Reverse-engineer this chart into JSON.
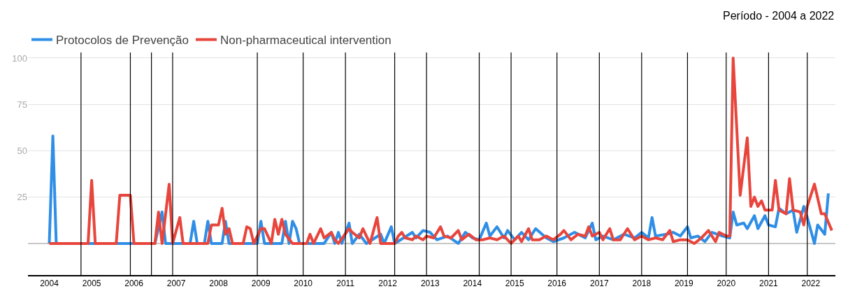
{
  "chart_data": {
    "type": "line",
    "annotations": [
      "Período - 2004 a 2022"
    ],
    "xlim": [
      "2003-07",
      "2022-08"
    ],
    "xticks": [
      "2004",
      "2005",
      "2006",
      "2007",
      "2008",
      "2009",
      "2010",
      "2011",
      "2012",
      "2013",
      "2014",
      "2015",
      "2016",
      "2017",
      "2018",
      "2019",
      "2020",
      "2021",
      "2022"
    ],
    "ylim": [
      -17,
      103
    ],
    "yticks": [
      25,
      50,
      75,
      100
    ],
    "grid": "y",
    "legend": "top left",
    "marker": "none",
    "line_style": "solid",
    "ref_lines": [
      {
        "axis": "x",
        "value": "2004-10",
        "label": null,
        "color": "#000000"
      },
      {
        "axis": "x",
        "value": "2005-12",
        "label": null,
        "color": "#000000"
      },
      {
        "axis": "x",
        "value": "2006-06",
        "label": null,
        "color": "#000000"
      },
      {
        "axis": "x",
        "value": "2006-12",
        "label": null,
        "color": "#000000"
      },
      {
        "axis": "x",
        "value": "2008-12",
        "label": null,
        "color": "#000000"
      },
      {
        "axis": "x",
        "value": "2010-01",
        "label": null,
        "color": "#000000"
      },
      {
        "axis": "x",
        "value": "2011-01",
        "label": null,
        "color": "#000000"
      },
      {
        "axis": "x",
        "value": "2012-03",
        "label": null,
        "color": "#000000"
      },
      {
        "axis": "x",
        "value": "2012-12",
        "label": null,
        "color": "#000000"
      },
      {
        "axis": "x",
        "value": "2014-03",
        "label": null,
        "color": "#000000"
      },
      {
        "axis": "x",
        "value": "2014-12",
        "label": null,
        "color": "#000000"
      },
      {
        "axis": "x",
        "value": "2016-01",
        "label": null,
        "color": "#000000"
      },
      {
        "axis": "x",
        "value": "2017-01",
        "label": null,
        "color": "#000000"
      },
      {
        "axis": "x",
        "value": "2018-01",
        "label": null,
        "color": "#000000"
      },
      {
        "axis": "x",
        "value": "2019-02",
        "label": null,
        "color": "#000000"
      },
      {
        "axis": "x",
        "value": "2020-01",
        "label": null,
        "color": "#000000"
      },
      {
        "axis": "x",
        "value": "2021-01",
        "label": null,
        "color": "#000000"
      },
      {
        "axis": "x",
        "value": "2021-12",
        "label": null,
        "color": "#000000"
      }
    ],
    "series": [
      {
        "name": "Protocolos de Prevenção",
        "color": "#2f8ee6",
        "x": [
          "2004-01",
          "2004-02",
          "2004-03",
          "2006-07",
          "2006-09",
          "2006-10",
          "2007-05",
          "2007-06",
          "2007-07",
          "2007-09",
          "2007-10",
          "2007-11",
          "2008-02",
          "2008-03",
          "2008-04",
          "2008-12",
          "2009-01",
          "2009-02",
          "2009-07",
          "2009-08",
          "2009-09",
          "2009-10",
          "2009-11",
          "2009-12",
          "2010-07",
          "2010-09",
          "2010-10",
          "2010-11",
          "2010-12",
          "2011-02",
          "2011-03",
          "2011-05",
          "2011-07",
          "2011-11",
          "2011-12",
          "2012-02",
          "2012-03",
          "2012-08",
          "2012-09",
          "2012-11",
          "2013-01",
          "2013-03",
          "2013-06",
          "2013-09",
          "2013-11",
          "2014-01",
          "2014-03",
          "2014-05",
          "2014-06",
          "2014-08",
          "2014-10",
          "2014-11",
          "2015-01",
          "2015-03",
          "2015-05",
          "2015-07",
          "2015-10",
          "2015-12",
          "2016-03",
          "2016-06",
          "2016-09",
          "2016-11",
          "2016-12",
          "2017-02",
          "2017-05",
          "2017-08",
          "2017-11",
          "2018-01",
          "2018-03",
          "2018-04",
          "2018-05",
          "2018-08",
          "2018-10",
          "2018-12",
          "2019-02",
          "2019-03",
          "2019-05",
          "2019-07",
          "2019-09",
          "2019-12",
          "2020-02",
          "2020-03",
          "2020-04",
          "2020-06",
          "2020-07",
          "2020-09",
          "2020-10",
          "2020-12",
          "2021-01",
          "2021-03",
          "2021-04",
          "2021-06",
          "2021-08",
          "2021-09",
          "2021-11",
          "2021-12",
          "2022-02",
          "2022-03",
          "2022-05",
          "2022-06"
        ],
        "values": [
          0,
          58,
          0,
          0,
          17,
          0,
          0,
          12,
          0,
          0,
          12,
          0,
          0,
          12,
          0,
          0,
          12,
          0,
          0,
          12,
          0,
          12,
          8,
          0,
          0,
          6,
          0,
          6,
          0,
          11,
          0,
          5,
          0,
          5,
          0,
          9,
          0,
          6,
          3,
          7,
          6,
          2,
          4,
          0,
          6,
          3,
          2,
          11,
          4,
          9,
          3,
          7,
          2,
          6,
          2,
          8,
          3,
          1,
          3,
          6,
          3,
          11,
          2,
          4,
          2,
          5,
          3,
          6,
          3,
          14,
          4,
          5,
          6,
          4,
          9,
          3,
          4,
          1,
          6,
          4,
          3,
          17,
          10,
          11,
          8,
          15,
          8,
          15,
          10,
          9,
          19,
          16,
          18,
          6,
          20,
          14,
          0,
          10,
          5,
          27
        ]
      },
      {
        "name": "Non-pharmaceutical intervention",
        "color": "#e8453c",
        "x": [
          "2004-01",
          "2004-12",
          "2005-01",
          "2005-02",
          "2005-08",
          "2005-09",
          "2005-12",
          "2006-01",
          "2006-07",
          "2006-08",
          "2006-09",
          "2006-11",
          "2006-12",
          "2007-02",
          "2007-03",
          "2007-10",
          "2007-11",
          "2008-01",
          "2008-02",
          "2008-03",
          "2008-04",
          "2008-05",
          "2008-08",
          "2008-09",
          "2008-10",
          "2008-11",
          "2009-01",
          "2009-02",
          "2009-04",
          "2009-05",
          "2009-06",
          "2009-07",
          "2009-08",
          "2009-10",
          "2010-02",
          "2010-03",
          "2010-04",
          "2010-06",
          "2010-07",
          "2010-09",
          "2010-10",
          "2010-11",
          "2011-02",
          "2011-03",
          "2011-05",
          "2011-06",
          "2011-07",
          "2011-08",
          "2011-10",
          "2011-11",
          "2012-03",
          "2012-04",
          "2012-05",
          "2012-06",
          "2012-08",
          "2012-09",
          "2012-11",
          "2012-12",
          "2013-02",
          "2013-04",
          "2013-05",
          "2013-07",
          "2013-09",
          "2013-10",
          "2013-12",
          "2014-02",
          "2014-04",
          "2014-06",
          "2014-08",
          "2014-10",
          "2014-12",
          "2015-02",
          "2015-03",
          "2015-05",
          "2015-06",
          "2015-08",
          "2015-10",
          "2015-12",
          "2016-02",
          "2016-03",
          "2016-05",
          "2016-07",
          "2016-09",
          "2016-10",
          "2016-11",
          "2017-01",
          "2017-02",
          "2017-04",
          "2017-05",
          "2017-07",
          "2017-09",
          "2017-11",
          "2018-01",
          "2018-03",
          "2018-05",
          "2018-07",
          "2018-09",
          "2018-10",
          "2018-12",
          "2019-02",
          "2019-04",
          "2019-06",
          "2019-08",
          "2019-10",
          "2019-11",
          "2020-01",
          "2020-02",
          "2020-03",
          "2020-05",
          "2020-07",
          "2020-08",
          "2020-09",
          "2020-10",
          "2020-11",
          "2020-12",
          "2021-01",
          "2021-02",
          "2021-03",
          "2021-04",
          "2021-06",
          "2021-07",
          "2021-08",
          "2021-10",
          "2021-11",
          "2021-12",
          "2022-02",
          "2022-04",
          "2022-05",
          "2022-07"
        ],
        "values": [
          0,
          0,
          34,
          0,
          0,
          26,
          26,
          0,
          0,
          17,
          0,
          32,
          0,
          14,
          0,
          0,
          10,
          10,
          19,
          5,
          8,
          0,
          0,
          9,
          8,
          0,
          8,
          8,
          0,
          13,
          5,
          13,
          5,
          0,
          0,
          5,
          0,
          8,
          3,
          6,
          2,
          0,
          8,
          6,
          3,
          8,
          4,
          0,
          14,
          0,
          0,
          4,
          6,
          3,
          2,
          4,
          2,
          4,
          3,
          9,
          4,
          3,
          7,
          2,
          5,
          2,
          2,
          3,
          2,
          4,
          0,
          4,
          1,
          8,
          2,
          2,
          4,
          2,
          5,
          7,
          2,
          5,
          4,
          9,
          4,
          6,
          2,
          8,
          2,
          2,
          8,
          2,
          4,
          2,
          3,
          2,
          7,
          1,
          2,
          2,
          0,
          3,
          7,
          1,
          6,
          4,
          4,
          100,
          26,
          57,
          20,
          25,
          20,
          23,
          18,
          18,
          18,
          34,
          18,
          16,
          35,
          18,
          17,
          10,
          20,
          32,
          16,
          16,
          7
        ]
      }
    ]
  }
}
